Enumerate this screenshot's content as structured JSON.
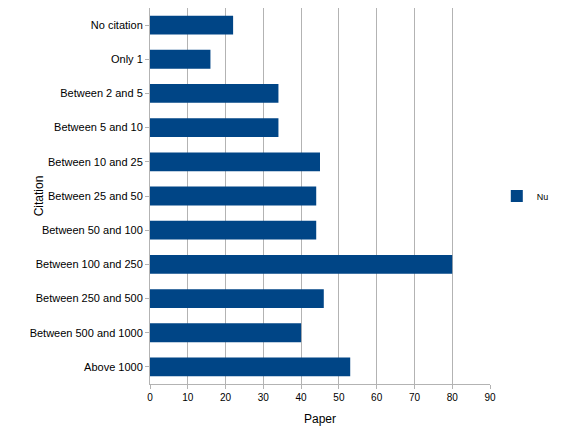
{
  "chart_data": {
    "type": "bar",
    "orientation": "horizontal",
    "x_label": "Paper",
    "y_label": "Citation",
    "categories": [
      "No citation",
      "Only 1",
      "Between 2 and 5",
      "Between 5 and 10",
      "Between 10 and 25",
      "Between 25 and 50",
      "Between 50 and 100",
      "Between 100 and 250",
      "Between 250 and 500",
      "Between 500 and 1000",
      "Above 1000"
    ],
    "series": [
      {
        "name": "Nu",
        "color": "#004586",
        "values": [
          22,
          16,
          34,
          34,
          45,
          44,
          44,
          80,
          46,
          40,
          53
        ]
      }
    ],
    "xlim": [
      0,
      90
    ],
    "xticks": [
      0,
      10,
      20,
      30,
      40,
      50,
      60,
      70,
      80,
      90
    ],
    "grid": true,
    "legend": "right"
  }
}
